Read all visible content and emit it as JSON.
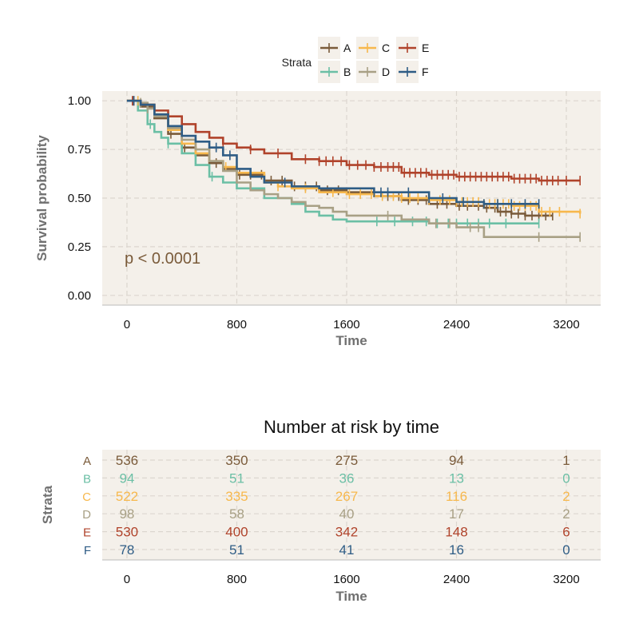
{
  "chart_data": [
    {
      "type": "line",
      "subtype": "kaplan-meier",
      "title": "",
      "xlabel": "Time",
      "ylabel": "Survival probability",
      "xlim": [
        -180,
        3450
      ],
      "ylim": [
        -0.05,
        1.05
      ],
      "xticks": [
        0,
        800,
        1600,
        2400,
        3200
      ],
      "yticks": [
        0.0,
        0.25,
        0.5,
        0.75,
        1.0
      ],
      "ytick_labels": [
        "0.00",
        "0.25",
        "0.50",
        "0.75",
        "1.00"
      ],
      "grid": true,
      "background": "#f4f0ea",
      "annotation": "p < 0.0001",
      "annotation_color": "#7a5b3a",
      "legend": {
        "title": "Strata",
        "position": "top",
        "entries": [
          "A",
          "C",
          "E",
          "B",
          "D",
          "F"
        ]
      },
      "series": [
        {
          "name": "A",
          "color": "#7a5b3a",
          "x": [
            0,
            100,
            200,
            300,
            400,
            500,
            600,
            700,
            800,
            1000,
            1200,
            1400,
            1600,
            1800,
            2000,
            2200,
            2400,
            2600,
            2700,
            2800,
            2900,
            3000,
            3100
          ],
          "y": [
            1.0,
            0.97,
            0.91,
            0.83,
            0.76,
            0.72,
            0.68,
            0.65,
            0.62,
            0.59,
            0.56,
            0.54,
            0.53,
            0.51,
            0.49,
            0.47,
            0.46,
            0.45,
            0.43,
            0.42,
            0.41,
            0.41,
            0.41
          ],
          "censor_x": [
            50,
            320,
            420,
            650,
            820,
            900,
            980,
            1050,
            1130,
            1220,
            1300,
            1380,
            1460,
            1540,
            1900,
            1980,
            2050,
            2120,
            2180,
            2260,
            2330,
            2420,
            2480,
            2560,
            2620,
            2680,
            2720,
            2760,
            2800,
            2850,
            2900,
            2950,
            3000,
            3050,
            3100
          ]
        },
        {
          "name": "B",
          "color": "#6bbfa5",
          "x": [
            0,
            80,
            150,
            200,
            250,
            300,
            400,
            500,
            600,
            700,
            800,
            1000,
            1200,
            1300,
            1400,
            1500,
            1600,
            2000,
            2200,
            2400,
            3000
          ],
          "y": [
            1.0,
            0.95,
            0.88,
            0.84,
            0.81,
            0.78,
            0.73,
            0.67,
            0.61,
            0.58,
            0.55,
            0.5,
            0.47,
            0.43,
            0.41,
            0.39,
            0.38,
            0.38,
            0.37,
            0.37,
            0.37
          ],
          "censor_x": [
            170,
            300,
            620,
            1820,
            1950,
            2080,
            2180,
            2260,
            2340,
            2400,
            2480,
            2560,
            2640,
            2760,
            3000
          ]
        },
        {
          "name": "C",
          "color": "#f7b84d",
          "x": [
            0,
            100,
            200,
            300,
            400,
            500,
            600,
            700,
            800,
            1000,
            1100,
            1200,
            1400,
            1600,
            1800,
            2000,
            2200,
            2400,
            2600,
            2800,
            3000,
            3300
          ],
          "y": [
            1.0,
            0.98,
            0.93,
            0.85,
            0.78,
            0.73,
            0.69,
            0.66,
            0.63,
            0.58,
            0.56,
            0.55,
            0.53,
            0.52,
            0.51,
            0.5,
            0.49,
            0.48,
            0.47,
            0.46,
            0.43,
            0.42
          ],
          "censor_x": [
            80,
            720,
            1100,
            1300,
            1500,
            1620,
            1700,
            1780,
            1860,
            1940,
            2000,
            2060,
            2120,
            2200,
            2280,
            2350,
            2400,
            2440,
            2480,
            2520,
            2560,
            2600,
            2640,
            2680,
            2700,
            2740,
            2780,
            2820,
            2860,
            2900,
            2940,
            2980,
            3020,
            3080,
            3150,
            3300
          ]
        },
        {
          "name": "D",
          "color": "#a8a085",
          "x": [
            0,
            100,
            150,
            200,
            300,
            400,
            500,
            600,
            700,
            800,
            900,
            1000,
            1100,
            1200,
            1300,
            1400,
            1500,
            1600,
            2000,
            2200,
            2400,
            2600,
            3300
          ],
          "y": [
            1.0,
            0.99,
            0.96,
            0.92,
            0.86,
            0.8,
            0.75,
            0.69,
            0.64,
            0.58,
            0.54,
            0.52,
            0.5,
            0.48,
            0.46,
            0.45,
            0.43,
            0.41,
            0.39,
            0.37,
            0.35,
            0.3,
            0.3
          ],
          "censor_x": [
            100,
            150,
            1900,
            2250,
            2350,
            2500,
            2560,
            3000,
            3300
          ]
        },
        {
          "name": "E",
          "color": "#b0432b",
          "x": [
            0,
            100,
            200,
            300,
            400,
            500,
            600,
            700,
            800,
            900,
            1000,
            1200,
            1400,
            1600,
            1800,
            2000,
            2200,
            2400,
            2600,
            2800,
            3000,
            3200,
            3300
          ],
          "y": [
            1.0,
            0.98,
            0.95,
            0.92,
            0.88,
            0.84,
            0.81,
            0.78,
            0.76,
            0.75,
            0.73,
            0.7,
            0.69,
            0.67,
            0.66,
            0.63,
            0.62,
            0.61,
            0.61,
            0.6,
            0.59,
            0.59,
            0.59
          ],
          "censor_x": [
            40,
            700,
            900,
            1100,
            1300,
            1400,
            1450,
            1500,
            1560,
            1620,
            1680,
            1740,
            1800,
            1850,
            1900,
            1940,
            1980,
            2020,
            2060,
            2100,
            2140,
            2180,
            2220,
            2260,
            2300,
            2340,
            2380,
            2420,
            2460,
            2500,
            2540,
            2580,
            2620,
            2660,
            2700,
            2740,
            2780,
            2820,
            2860,
            2900,
            2940,
            2980,
            3020,
            3060,
            3100,
            3140,
            3200,
            3300
          ]
        },
        {
          "name": "F",
          "color": "#2e5c85",
          "x": [
            0,
            100,
            200,
            300,
            400,
            500,
            600,
            700,
            800,
            900,
            1000,
            1200,
            1400,
            1600,
            1800,
            2000,
            2200,
            2400,
            2600,
            2800,
            3000
          ],
          "y": [
            1.0,
            0.98,
            0.93,
            0.87,
            0.82,
            0.79,
            0.76,
            0.72,
            0.65,
            0.61,
            0.58,
            0.56,
            0.55,
            0.55,
            0.53,
            0.53,
            0.5,
            0.48,
            0.47,
            0.47,
            0.47
          ],
          "censor_x": [
            50,
            650,
            750,
            1150,
            1800,
            1850,
            1900,
            2050,
            2200,
            2300,
            2450,
            2600,
            2700,
            2800,
            2900,
            3000
          ]
        }
      ]
    },
    {
      "type": "table",
      "title": "Number at risk by time",
      "xlabel": "Time",
      "ylabel": "Strata",
      "xlim": [
        -180,
        3450
      ],
      "xticks": [
        0,
        800,
        1600,
        2400,
        3200
      ],
      "time_points": [
        0,
        800,
        1600,
        2400,
        3200
      ],
      "background": "#f4f0ea",
      "rows": [
        {
          "name": "A",
          "color": "#7a5b3a",
          "values": [
            536,
            350,
            275,
            94,
            1
          ]
        },
        {
          "name": "B",
          "color": "#6bbfa5",
          "values": [
            94,
            51,
            36,
            13,
            0
          ]
        },
        {
          "name": "C",
          "color": "#f7b84d",
          "values": [
            522,
            335,
            267,
            116,
            2
          ]
        },
        {
          "name": "D",
          "color": "#a8a085",
          "values": [
            98,
            58,
            40,
            17,
            2
          ]
        },
        {
          "name": "E",
          "color": "#b0432b",
          "values": [
            530,
            400,
            342,
            148,
            6
          ]
        },
        {
          "name": "F",
          "color": "#2e5c85",
          "values": [
            78,
            51,
            41,
            16,
            0
          ]
        }
      ]
    }
  ]
}
